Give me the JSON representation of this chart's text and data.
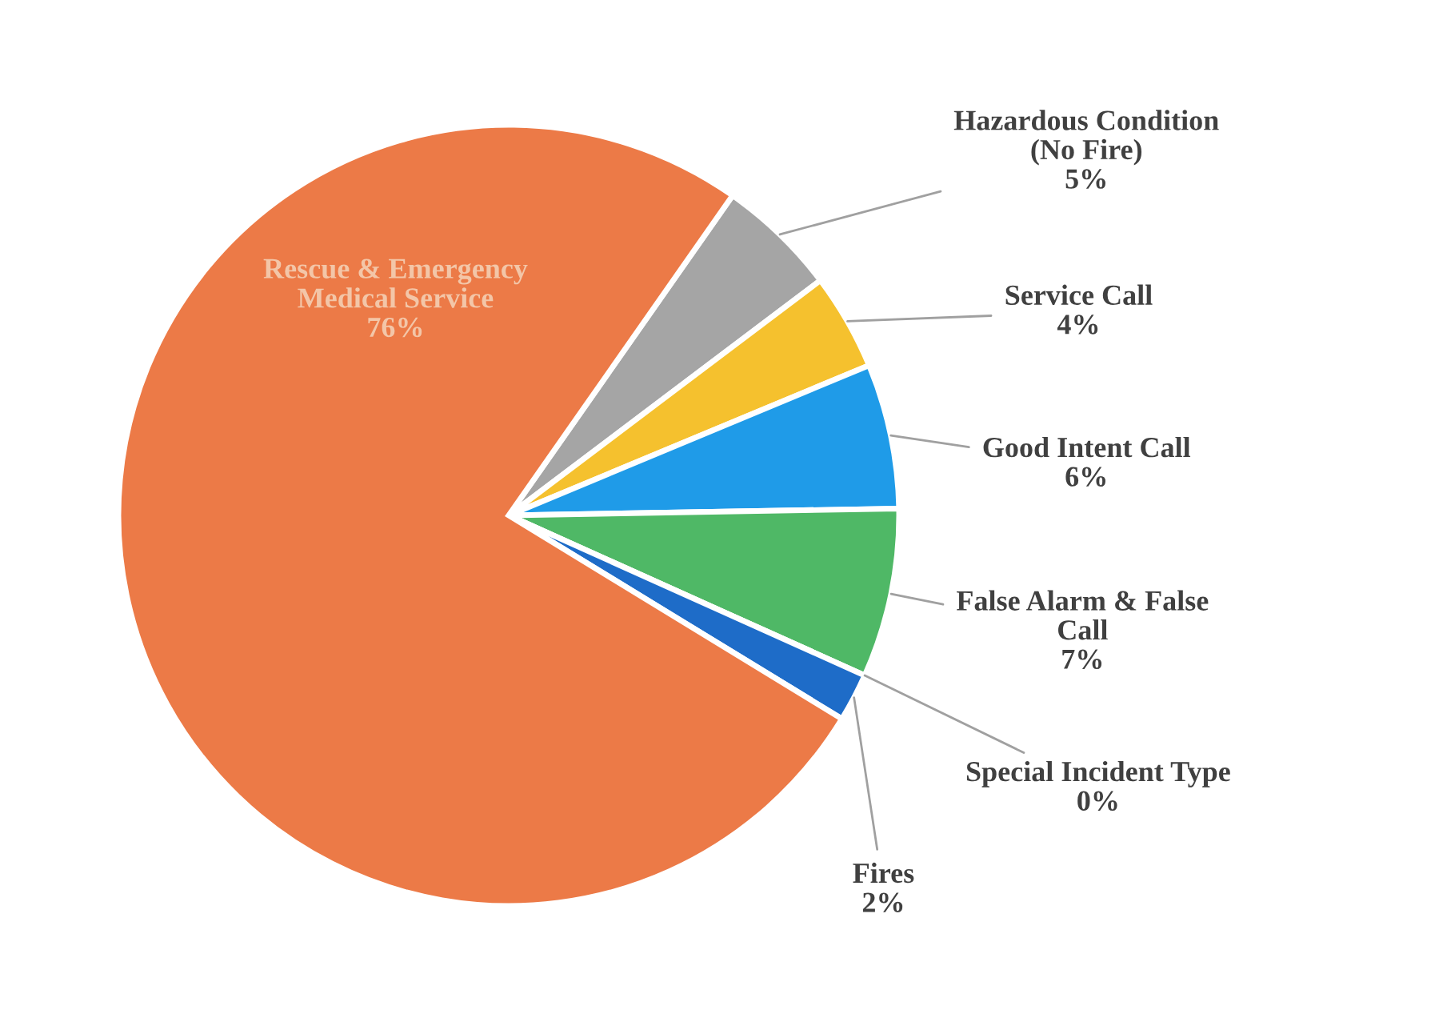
{
  "chart_data": {
    "type": "pie",
    "categories": [
      "Hazardous Condition\n(No Fire)",
      "Service Call",
      "Good Intent Call",
      "False Alarm & False\nCall",
      "Special Incident Type",
      "Fires",
      "Rescue & Emergency\nMedical Service"
    ],
    "values": [
      5,
      4,
      6,
      7,
      0,
      2,
      76
    ],
    "value_labels": [
      "5%",
      "4%",
      "6%",
      "7%",
      "0%",
      "2%",
      "76%"
    ],
    "colors": [
      "#a5a5a5",
      "#f5c12e",
      "#1f9be8",
      "#4fb866",
      "#2f4f8f",
      "#1e6cc8",
      "#ec7a47"
    ]
  }
}
